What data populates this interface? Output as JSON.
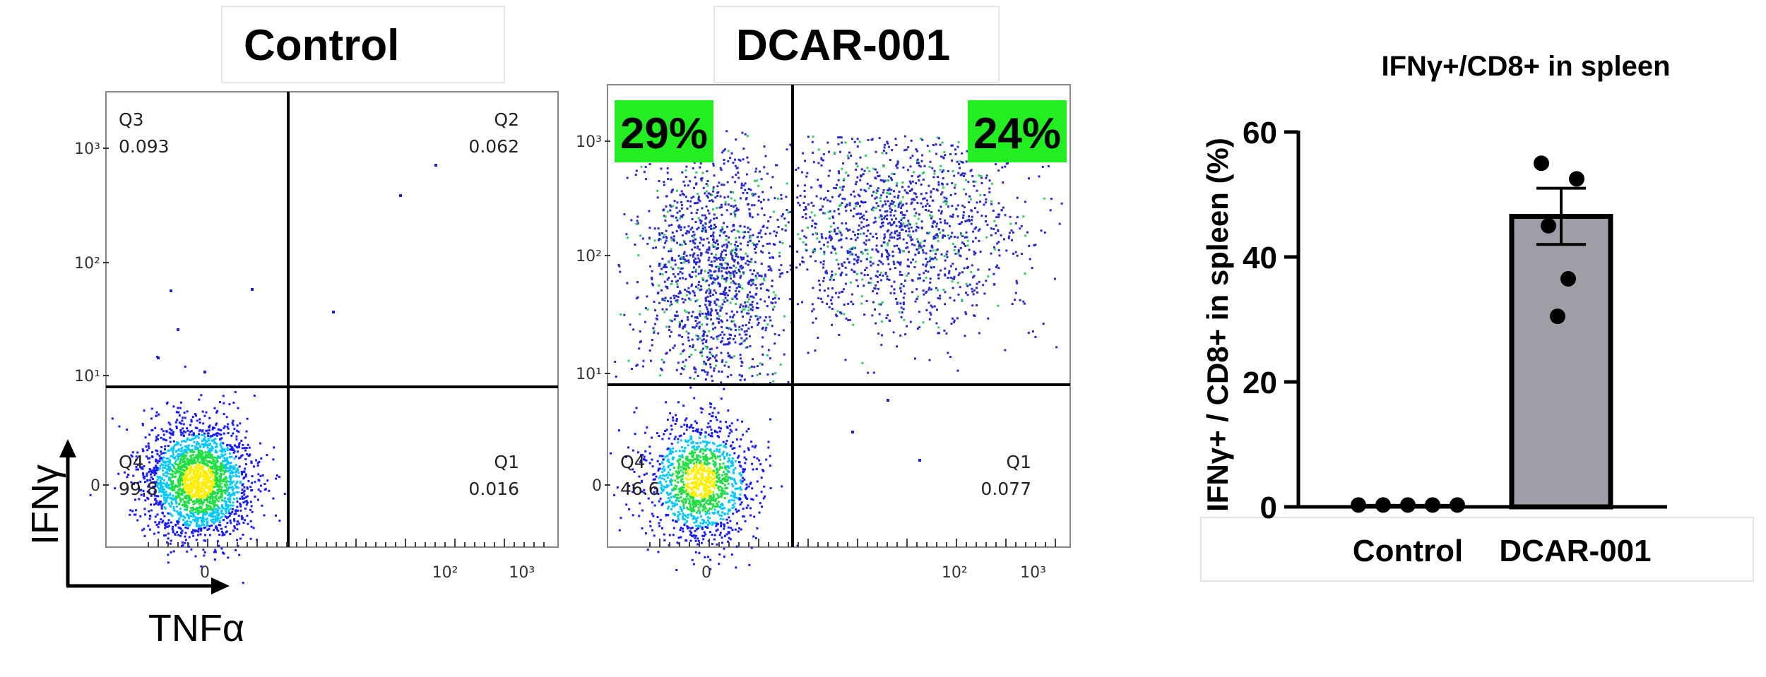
{
  "flow": {
    "panels": [
      {
        "title": "Control",
        "quadrants": {
          "q3": {
            "label": "Q3",
            "value": "0.093"
          },
          "q2": {
            "label": "Q2",
            "value": "0.062"
          },
          "q4": {
            "label": "Q4",
            "value": "99.8"
          },
          "q1": {
            "label": "Q1",
            "value": "0.016"
          }
        },
        "highlights": []
      },
      {
        "title": "DCAR-001",
        "quadrants": {
          "q4": {
            "label": "Q4",
            "value": "46.6"
          },
          "q1": {
            "label": "Q1",
            "value": "0.077"
          }
        },
        "highlights": [
          {
            "text": "29%",
            "quadrant": "Q3"
          },
          {
            "text": "24%",
            "quadrant": "Q2"
          }
        ]
      }
    ],
    "tick_labels": {
      "y": [
        "10³",
        "10²",
        "10¹",
        "0"
      ],
      "x": [
        "0",
        "10²",
        "10³"
      ]
    },
    "axis_labels": {
      "y": "IFNγ",
      "x": "TNFα"
    },
    "colors": {
      "highlight": "#22ee22",
      "gate": "#000000"
    }
  },
  "chart_data": {
    "type": "bar",
    "title": "IFNγ+/CD8+ in spleen",
    "ylabel": "IFNγ+ / CD8+ in spleen (%)",
    "xlabel": "",
    "categories": [
      "Control",
      "DCAR-001"
    ],
    "values": [
      0.3,
      46.5
    ],
    "error": [
      0.1,
      4.5
    ],
    "points": [
      [
        0.3,
        0.3,
        0.3,
        0.3,
        0.3
      ],
      [
        55,
        52.5,
        45,
        36.5,
        30.5
      ]
    ],
    "ylim": [
      0,
      60
    ],
    "yticks": [
      0,
      20,
      40,
      60
    ],
    "colors": {
      "control_bar": "#ffffff",
      "dcar_bar": "#9e9ea6",
      "points": "#000000"
    }
  }
}
